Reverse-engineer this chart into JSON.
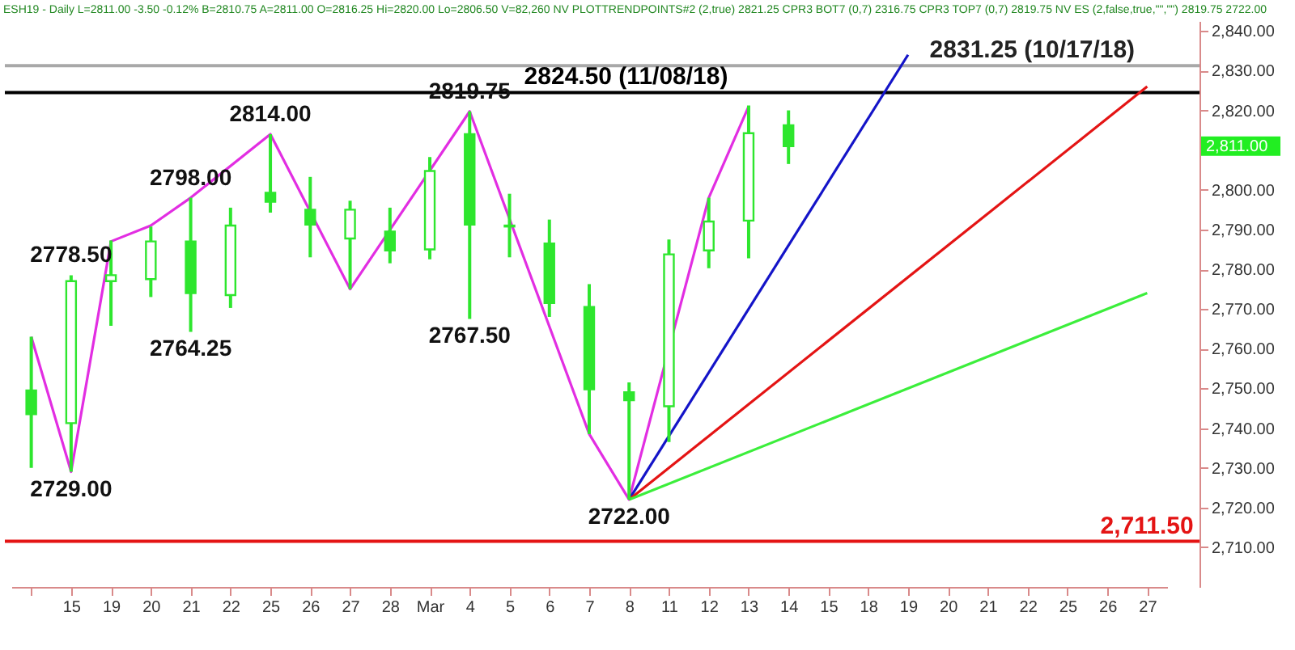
{
  "chart_data": {
    "type": "candlestick",
    "title": "ESH19 - Daily L=2811.00 -3.50 -0.12% B=2810.75 A=2811.00 O=2816.25 Hi=2820.00 Lo=2806.50 V=82,260 NV PLOTTRENDPOINTS#2 (2,true) 2821.25 CPR3 BOT7 (0,7) 2316.75 CPR3 TOP7 (0,7) 2819.75 NV ES (2,false,true,\"\",\"\") 2819.75 2722.00",
    "categories": [
      null,
      "15",
      "19",
      "20",
      "21",
      "22",
      "25",
      "26",
      "27",
      "28",
      "Mar",
      "4",
      "5",
      "6",
      "7",
      "8",
      "11",
      "12",
      "13",
      "14",
      "15",
      "18",
      "19",
      "20",
      "21",
      "22",
      "25",
      "26",
      "27"
    ],
    "color": "#2ee62e",
    "ohlc": [
      [
        2749.5,
        2763,
        2730,
        2743.5
      ],
      [
        2741.25,
        2778.5,
        2729,
        2777
      ],
      [
        2777,
        2787.25,
        2765.75,
        2778.5
      ],
      [
        2777.5,
        2790.75,
        2773,
        2787
      ],
      [
        2787,
        2798,
        2764.25,
        2774
      ],
      [
        2773.5,
        2795.5,
        2770.25,
        2791
      ],
      [
        2799.25,
        2814,
        2794.25,
        2797
      ],
      [
        2795,
        2803.25,
        2783,
        2791.25
      ],
      [
        2787.75,
        2797.25,
        2775,
        2795
      ],
      [
        2789.5,
        2795.5,
        2781.5,
        2784.75
      ],
      [
        2785,
        2808.25,
        2782.5,
        2804.75
      ],
      [
        2814,
        2819.75,
        2767.5,
        2791.25
      ],
      [
        2790.75,
        2799,
        2783,
        2791
      ],
      [
        2786.5,
        2792.5,
        2768,
        2771.5
      ],
      [
        2770.5,
        2776.25,
        2738.5,
        2749.75
      ],
      [
        2749,
        2751.5,
        2722,
        2747
      ],
      [
        2745.5,
        2787.5,
        2736.5,
        2783.75
      ],
      [
        2784.75,
        2798,
        2780.25,
        2792
      ],
      [
        2792.25,
        2821.25,
        2782.75,
        2814.25
      ],
      [
        2816.25,
        2820,
        2806.5,
        2811
      ],
      null,
      null,
      null,
      null,
      null,
      null,
      null,
      null,
      null
    ],
    "series": [
      {
        "type": "line",
        "color": "#e22ee2",
        "values": [
          2763,
          2729,
          2787,
          2791,
          2798,
          null,
          2814,
          null,
          2775,
          null,
          null,
          2819.75,
          null,
          null,
          2738.5,
          2722,
          null,
          2798,
          2821,
          null,
          null,
          null,
          null,
          null,
          null,
          null,
          null,
          null,
          null
        ]
      },
      {
        "type": "line",
        "color": "#1414c8",
        "values": [
          null,
          null,
          null,
          null,
          null,
          null,
          null,
          null,
          null,
          null,
          null,
          null,
          null,
          null,
          null,
          2722,
          null,
          null,
          null,
          null,
          null,
          null,
          2834,
          null,
          null,
          null,
          null,
          null,
          null
        ]
      },
      {
        "type": "line",
        "color": "#e41414",
        "values": [
          null,
          null,
          null,
          null,
          null,
          null,
          null,
          null,
          null,
          null,
          null,
          null,
          null,
          null,
          null,
          2722,
          null,
          null,
          null,
          null,
          null,
          null,
          null,
          null,
          null,
          null,
          null,
          null,
          2826
        ]
      },
      {
        "type": "line",
        "color": "#3cee3c",
        "values": [
          null,
          null,
          null,
          null,
          null,
          null,
          null,
          null,
          null,
          null,
          null,
          null,
          null,
          null,
          null,
          2722,
          null,
          null,
          null,
          null,
          null,
          null,
          null,
          null,
          null,
          null,
          null,
          null,
          2774
        ]
      }
    ],
    "ylim": [
      2700,
      2842.5
    ],
    "yticks": [
      {
        "value": 2710,
        "label": "2,710.00"
      },
      {
        "value": 2720,
        "label": "2,720.00"
      },
      {
        "value": 2730,
        "label": "2,730.00"
      },
      {
        "value": 2740,
        "label": "2,740.00"
      },
      {
        "value": 2750,
        "label": "2,750.00"
      },
      {
        "value": 2760,
        "label": "2,760.00"
      },
      {
        "value": 2770,
        "label": "2,770.00"
      },
      {
        "value": 2780,
        "label": "2,780.00"
      },
      {
        "value": 2790,
        "label": "2,790.00"
      },
      {
        "value": 2800,
        "label": "2,800.00"
      },
      {
        "value": 2820,
        "label": "2,820.00"
      },
      {
        "value": 2830,
        "label": "2,830.00"
      },
      {
        "value": 2840,
        "label": "2,840.00"
      }
    ],
    "ref_lines": [
      {
        "axis": "y",
        "value": 2831.25,
        "label": "2831.25 (10/17/18)",
        "color": "#a8a8a8"
      },
      {
        "axis": "y",
        "value": 2824.5,
        "label": "2824.50 (11/08/18)",
        "color": "#000000"
      },
      {
        "axis": "y",
        "value": 2711.5,
        "label": "2,711.50",
        "color": "#e41414"
      }
    ],
    "annotations": [
      {
        "text": "2778.50",
        "x": "15",
        "y": 2778.5
      },
      {
        "text": "2729.00",
        "x": "15",
        "y": 2729
      },
      {
        "text": "2798.00",
        "x": "21",
        "y": 2798
      },
      {
        "text": "2764.25",
        "x": "21",
        "y": 2764.25
      },
      {
        "text": "2814.00",
        "x": "25",
        "y": 2814
      },
      {
        "text": "2819.75",
        "x": "4",
        "y": 2819.75
      },
      {
        "text": "2767.50",
        "x": "4",
        "y": 2767.5
      },
      {
        "text": "2722.00",
        "x": "8",
        "y": 2722
      },
      "2,811.00"
    ],
    "grid": false
  }
}
